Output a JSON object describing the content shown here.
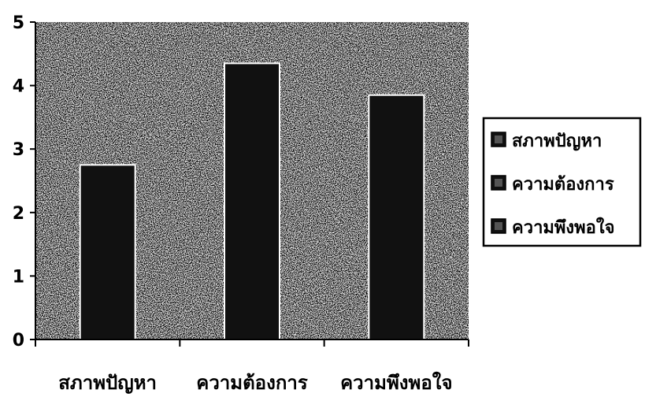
{
  "chart_data": {
    "type": "bar",
    "categories": [
      "สภาพปัญหา",
      "ความต้องการ",
      "ความพึงพอใจ"
    ],
    "series": [
      {
        "name": "สภาพปัญหา",
        "values": [
          2.75,
          null,
          null
        ]
      },
      {
        "name": "ความต้องการ",
        "values": [
          null,
          4.35,
          null
        ]
      },
      {
        "name": "ความพึงพอใจ",
        "values": [
          null,
          null,
          3.85
        ]
      }
    ],
    "values": [
      2.75,
      4.35,
      3.85
    ],
    "ylim": [
      0,
      5
    ],
    "yticks": [
      "0",
      "1",
      "2",
      "3",
      "4",
      "5"
    ],
    "grid": false,
    "legend_position": "right",
    "colors": {
      "plot_background": "#d9d9d9",
      "bar_fill": "#111111",
      "legend_border": "#000000"
    }
  }
}
